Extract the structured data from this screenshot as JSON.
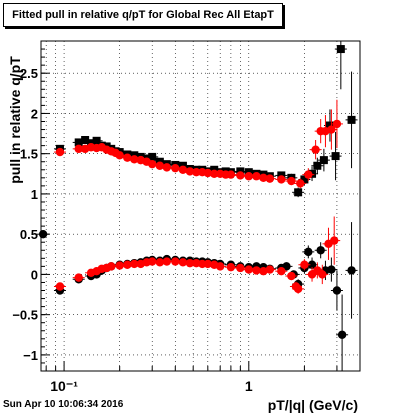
{
  "title": "Fitted pull in relative q/pT  for Global Rec All EtapT",
  "footer_date": "Sun Apr 10 10:06:34 2016",
  "colors": {
    "series_black": "#000000",
    "series_red": "#ff0000",
    "grid": "#000000"
  },
  "chart_data": {
    "type": "scatter",
    "title": "Fitted pull in relative q/pT  for Global Rec All EtapT",
    "xlabel": "pT/|q| (GeV/c)",
    "ylabel": "pull in relative q/pT",
    "xscale": "log",
    "xlim": [
      0.075,
      4.0
    ],
    "ylim": [
      -1.2,
      2.9
    ],
    "x_ticks": [
      {
        "value": 0.1,
        "label": "10⁻¹"
      },
      {
        "value": 1,
        "label": "1"
      }
    ],
    "y_ticks": [
      -1,
      -0.5,
      0,
      0.5,
      1,
      1.5,
      2,
      2.5
    ],
    "y_tick_labels": [
      "−1",
      "−0.5",
      "0",
      "0.5",
      "1",
      "1.5",
      "2",
      "2.5"
    ],
    "grid": true,
    "legend": "none",
    "series": [
      {
        "color": "#000000",
        "marker": "square",
        "points": [
          [
            0.095,
            1.56,
            0.03
          ],
          [
            0.12,
            1.64,
            0.02
          ],
          [
            0.13,
            1.67,
            0.02
          ],
          [
            0.14,
            1.63,
            0.02
          ],
          [
            0.15,
            1.66,
            0.02
          ],
          [
            0.16,
            1.6,
            0.02
          ],
          [
            0.17,
            1.59,
            0.02
          ],
          [
            0.18,
            1.56,
            0.02
          ],
          [
            0.19,
            1.53,
            0.02
          ],
          [
            0.2,
            1.52,
            0.02
          ],
          [
            0.22,
            1.49,
            0.02
          ],
          [
            0.24,
            1.48,
            0.02
          ],
          [
            0.26,
            1.46,
            0.02
          ],
          [
            0.28,
            1.44,
            0.02
          ],
          [
            0.3,
            1.46,
            0.02
          ],
          [
            0.33,
            1.4,
            0.02
          ],
          [
            0.36,
            1.37,
            0.02
          ],
          [
            0.4,
            1.36,
            0.02
          ],
          [
            0.44,
            1.35,
            0.02
          ],
          [
            0.48,
            1.31,
            0.02
          ],
          [
            0.52,
            1.3,
            0.02
          ],
          [
            0.56,
            1.3,
            0.02
          ],
          [
            0.6,
            1.28,
            0.02
          ],
          [
            0.65,
            1.3,
            0.02
          ],
          [
            0.7,
            1.27,
            0.02
          ],
          [
            0.75,
            1.28,
            0.02
          ],
          [
            0.8,
            1.27,
            0.02
          ],
          [
            0.9,
            1.28,
            0.02
          ],
          [
            1.0,
            1.27,
            0.03
          ],
          [
            1.1,
            1.25,
            0.03
          ],
          [
            1.2,
            1.24,
            0.03
          ],
          [
            1.3,
            1.22,
            0.04
          ],
          [
            1.5,
            1.23,
            0.04
          ],
          [
            1.7,
            1.2,
            0.05
          ],
          [
            1.85,
            1.02,
            0.06
          ],
          [
            2.0,
            1.18,
            0.07
          ],
          [
            2.2,
            1.25,
            0.09
          ],
          [
            2.35,
            1.35,
            0.1
          ],
          [
            2.55,
            1.42,
            0.14
          ],
          [
            2.75,
            1.85,
            0.2
          ],
          [
            2.95,
            1.47,
            0.3
          ],
          [
            3.15,
            2.8,
            0.5
          ],
          [
            3.6,
            1.92,
            0.6
          ]
        ]
      },
      {
        "color": "#ff0000",
        "marker": "circle",
        "points": [
          [
            0.095,
            1.52,
            0.03
          ],
          [
            0.12,
            1.56,
            0.02
          ],
          [
            0.13,
            1.56,
            0.02
          ],
          [
            0.14,
            1.58,
            0.02
          ],
          [
            0.15,
            1.57,
            0.02
          ],
          [
            0.16,
            1.58,
            0.02
          ],
          [
            0.17,
            1.55,
            0.02
          ],
          [
            0.18,
            1.53,
            0.02
          ],
          [
            0.19,
            1.51,
            0.02
          ],
          [
            0.2,
            1.48,
            0.02
          ],
          [
            0.22,
            1.45,
            0.02
          ],
          [
            0.24,
            1.43,
            0.02
          ],
          [
            0.26,
            1.42,
            0.02
          ],
          [
            0.28,
            1.4,
            0.02
          ],
          [
            0.3,
            1.37,
            0.02
          ],
          [
            0.33,
            1.35,
            0.02
          ],
          [
            0.36,
            1.33,
            0.02
          ],
          [
            0.4,
            1.32,
            0.02
          ],
          [
            0.44,
            1.3,
            0.02
          ],
          [
            0.48,
            1.28,
            0.02
          ],
          [
            0.52,
            1.27,
            0.02
          ],
          [
            0.56,
            1.27,
            0.02
          ],
          [
            0.6,
            1.26,
            0.02
          ],
          [
            0.65,
            1.25,
            0.02
          ],
          [
            0.7,
            1.25,
            0.02
          ],
          [
            0.75,
            1.24,
            0.02
          ],
          [
            0.8,
            1.24,
            0.02
          ],
          [
            0.9,
            1.23,
            0.02
          ],
          [
            1.0,
            1.22,
            0.03
          ],
          [
            1.1,
            1.22,
            0.03
          ],
          [
            1.2,
            1.2,
            0.03
          ],
          [
            1.3,
            1.19,
            0.04
          ],
          [
            1.5,
            1.18,
            0.04
          ],
          [
            1.7,
            1.16,
            0.05
          ],
          [
            1.9,
            1.13,
            0.06
          ],
          [
            2.1,
            1.24,
            0.08
          ],
          [
            2.3,
            1.55,
            0.12
          ],
          [
            2.45,
            1.78,
            0.15
          ],
          [
            2.6,
            1.78,
            0.2
          ],
          [
            2.8,
            1.8,
            0.25
          ],
          [
            3.0,
            1.87,
            0.3
          ]
        ]
      },
      {
        "color": "#000000",
        "marker": "circle",
        "points": [
          [
            0.077,
            0.5,
            0.05
          ],
          [
            0.095,
            -0.2,
            0.04
          ],
          [
            0.12,
            -0.06,
            0.03
          ],
          [
            0.14,
            -0.02,
            0.02
          ],
          [
            0.15,
            0.0,
            0.02
          ],
          [
            0.16,
            0.05,
            0.02
          ],
          [
            0.17,
            0.08,
            0.02
          ],
          [
            0.18,
            0.1,
            0.02
          ],
          [
            0.2,
            0.12,
            0.02
          ],
          [
            0.22,
            0.13,
            0.02
          ],
          [
            0.24,
            0.14,
            0.02
          ],
          [
            0.26,
            0.15,
            0.02
          ],
          [
            0.28,
            0.17,
            0.02
          ],
          [
            0.3,
            0.18,
            0.02
          ],
          [
            0.33,
            0.17,
            0.02
          ],
          [
            0.36,
            0.19,
            0.02
          ],
          [
            0.4,
            0.18,
            0.02
          ],
          [
            0.44,
            0.17,
            0.02
          ],
          [
            0.48,
            0.17,
            0.02
          ],
          [
            0.52,
            0.16,
            0.02
          ],
          [
            0.56,
            0.16,
            0.02
          ],
          [
            0.6,
            0.15,
            0.02
          ],
          [
            0.65,
            0.14,
            0.02
          ],
          [
            0.7,
            0.13,
            0.02
          ],
          [
            0.8,
            0.12,
            0.02
          ],
          [
            0.9,
            0.1,
            0.02
          ],
          [
            1.0,
            0.09,
            0.03
          ],
          [
            1.1,
            0.1,
            0.03
          ],
          [
            1.2,
            0.09,
            0.03
          ],
          [
            1.3,
            0.07,
            0.04
          ],
          [
            1.5,
            0.08,
            0.04
          ],
          [
            1.6,
            0.1,
            0.05
          ],
          [
            1.75,
            0.0,
            0.05
          ],
          [
            1.85,
            -0.12,
            0.06
          ],
          [
            2.0,
            0.08,
            0.07
          ],
          [
            2.1,
            0.28,
            0.08
          ],
          [
            2.2,
            0.12,
            0.09
          ],
          [
            2.45,
            0.3,
            0.1
          ],
          [
            2.6,
            0.05,
            0.12
          ],
          [
            2.8,
            0.06,
            0.15
          ],
          [
            3.0,
            -0.2,
            0.25
          ],
          [
            3.2,
            -0.75,
            0.5
          ],
          [
            3.6,
            0.05,
            0.6
          ]
        ]
      },
      {
        "color": "#ff0000",
        "marker": "circle",
        "points": [
          [
            0.095,
            -0.15,
            0.04
          ],
          [
            0.12,
            -0.04,
            0.03
          ],
          [
            0.14,
            0.02,
            0.02
          ],
          [
            0.15,
            0.04,
            0.02
          ],
          [
            0.16,
            0.07,
            0.02
          ],
          [
            0.17,
            0.08,
            0.02
          ],
          [
            0.18,
            0.1,
            0.02
          ],
          [
            0.2,
            0.11,
            0.02
          ],
          [
            0.22,
            0.12,
            0.02
          ],
          [
            0.24,
            0.13,
            0.02
          ],
          [
            0.26,
            0.13,
            0.02
          ],
          [
            0.28,
            0.15,
            0.02
          ],
          [
            0.3,
            0.16,
            0.02
          ],
          [
            0.33,
            0.15,
            0.02
          ],
          [
            0.36,
            0.16,
            0.02
          ],
          [
            0.4,
            0.16,
            0.02
          ],
          [
            0.44,
            0.15,
            0.02
          ],
          [
            0.48,
            0.14,
            0.02
          ],
          [
            0.52,
            0.14,
            0.02
          ],
          [
            0.56,
            0.13,
            0.02
          ],
          [
            0.6,
            0.13,
            0.02
          ],
          [
            0.65,
            0.12,
            0.02
          ],
          [
            0.7,
            0.1,
            0.02
          ],
          [
            0.8,
            0.09,
            0.02
          ],
          [
            0.9,
            0.08,
            0.02
          ],
          [
            1.0,
            0.06,
            0.03
          ],
          [
            1.1,
            0.05,
            0.03
          ],
          [
            1.2,
            0.04,
            0.03
          ],
          [
            1.3,
            0.06,
            0.04
          ],
          [
            1.5,
            0.04,
            0.04
          ],
          [
            1.7,
            -0.02,
            0.05
          ],
          [
            1.8,
            -0.15,
            0.06
          ],
          [
            1.85,
            -0.18,
            0.06
          ],
          [
            2.0,
            0.12,
            0.07
          ],
          [
            2.2,
            0.0,
            0.09
          ],
          [
            2.35,
            0.05,
            0.1
          ],
          [
            2.5,
            0.0,
            0.12
          ],
          [
            2.7,
            0.38,
            0.2
          ],
          [
            2.9,
            0.42,
            0.3
          ]
        ]
      }
    ]
  }
}
